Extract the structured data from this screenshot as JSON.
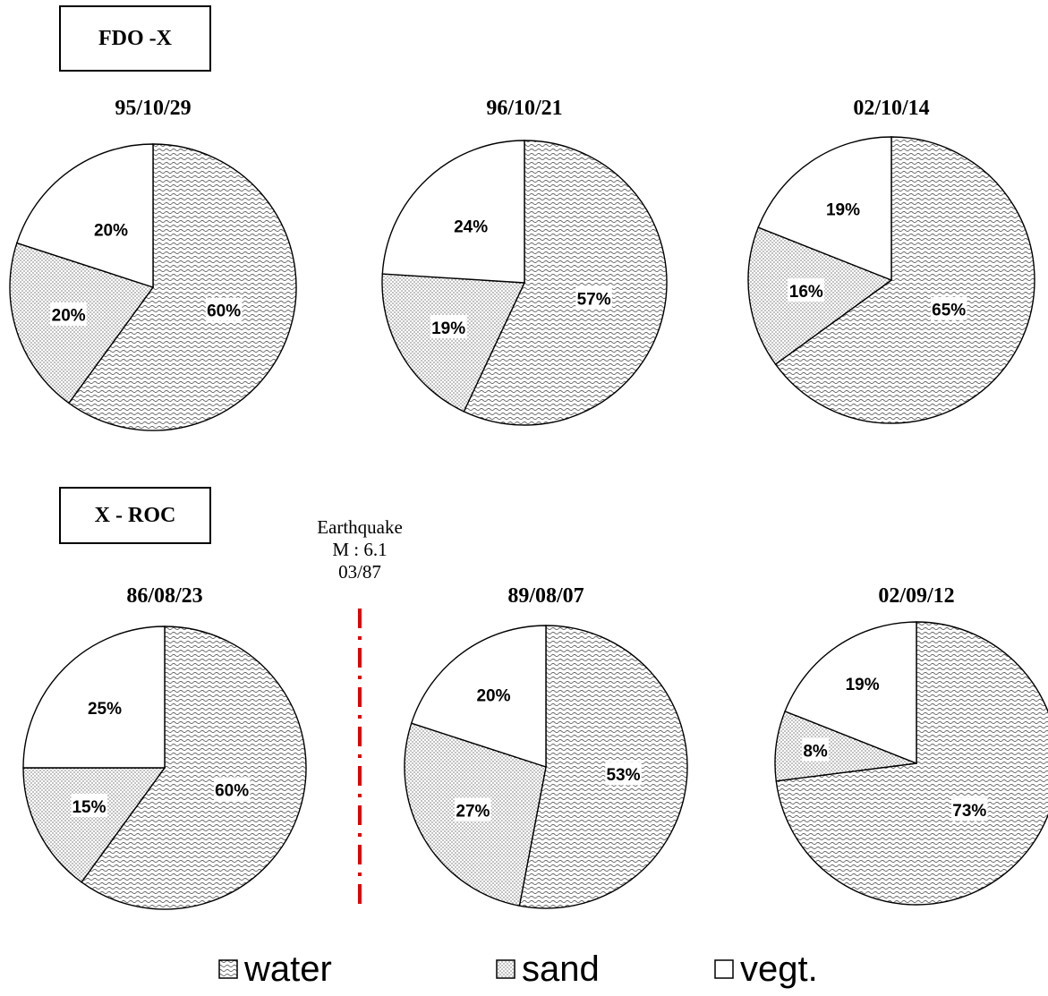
{
  "groups": [
    {
      "label": "FDO -X"
    },
    {
      "label": "X - ROC"
    }
  ],
  "event": {
    "lines": [
      "Earthquake",
      "M : 6.1",
      "03/87"
    ],
    "line_color": "#e00000"
  },
  "legend": {
    "items": [
      {
        "label": "water",
        "pattern": "wave"
      },
      {
        "label": "sand",
        "pattern": "dots"
      },
      {
        "label": "vegt.",
        "pattern": "none"
      }
    ]
  },
  "chart_data": [
    {
      "type": "pie",
      "group": "FDO -X",
      "title": "95/10/29",
      "categories": [
        "water",
        "sand",
        "vegt."
      ],
      "values": [
        60,
        20,
        20
      ],
      "labels": [
        "60%",
        "20%",
        "20%"
      ]
    },
    {
      "type": "pie",
      "group": "FDO -X",
      "title": "96/10/21",
      "categories": [
        "water",
        "sand",
        "vegt."
      ],
      "values": [
        57,
        19,
        24
      ],
      "labels": [
        "57%",
        "19%",
        "24%"
      ]
    },
    {
      "type": "pie",
      "group": "FDO -X",
      "title": "02/10/14",
      "categories": [
        "water",
        "sand",
        "vegt."
      ],
      "values": [
        65,
        16,
        19
      ],
      "labels": [
        "65%",
        "16%",
        "19%"
      ]
    },
    {
      "type": "pie",
      "group": "X - ROC",
      "title": "86/08/23",
      "categories": [
        "water",
        "sand",
        "vegt."
      ],
      "values": [
        60,
        15,
        25
      ],
      "labels": [
        "60%",
        "15%",
        "25%"
      ]
    },
    {
      "type": "pie",
      "group": "X - ROC",
      "title": "89/08/07",
      "categories": [
        "water",
        "sand",
        "vegt."
      ],
      "values": [
        53,
        27,
        20
      ],
      "labels": [
        "53%",
        "27%",
        "20%"
      ]
    },
    {
      "type": "pie",
      "group": "X - ROC",
      "title": "02/09/12",
      "categories": [
        "water",
        "sand",
        "vegt."
      ],
      "values": [
        73,
        8,
        19
      ],
      "labels": [
        "73%",
        "8%",
        "19%"
      ]
    }
  ]
}
